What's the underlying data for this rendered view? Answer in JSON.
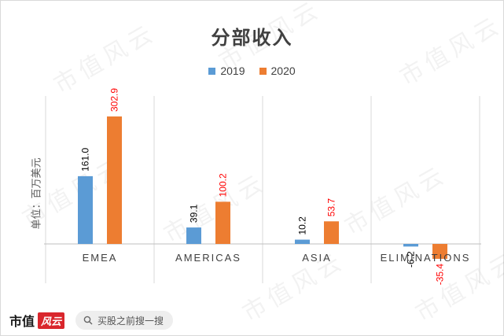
{
  "chart_data": {
    "type": "bar",
    "title": "分部收入",
    "ylabel": "单位：百万美元",
    "categories": [
      "EMEA",
      "AMERICAS",
      "ASIA",
      "ELIMINATIONS"
    ],
    "series": [
      {
        "name": "2019",
        "color": "#5b9bd5",
        "values": [
          161.0,
          39.1,
          10.2,
          -6.2
        ],
        "labels": [
          "161.0",
          "39.1",
          "10.2",
          "-6.2"
        ]
      },
      {
        "name": "2020",
        "color": "#ed7d31",
        "values": [
          302.9,
          100.2,
          53.7,
          -35.4
        ],
        "labels": [
          "302.9",
          "100.2",
          "53.7",
          "-35.4"
        ]
      }
    ],
    "label_colors": {
      "2019": "#000000",
      "2020": "#ff0000"
    },
    "ylim": [
      -50,
      330
    ],
    "grid": false,
    "legend": "top-center"
  },
  "watermark": {
    "text": "市值风云"
  },
  "footer": {
    "brand_text": "市值",
    "brand_badge": "风云",
    "search_text": "买股之前搜一搜",
    "icon": "search-icon"
  }
}
